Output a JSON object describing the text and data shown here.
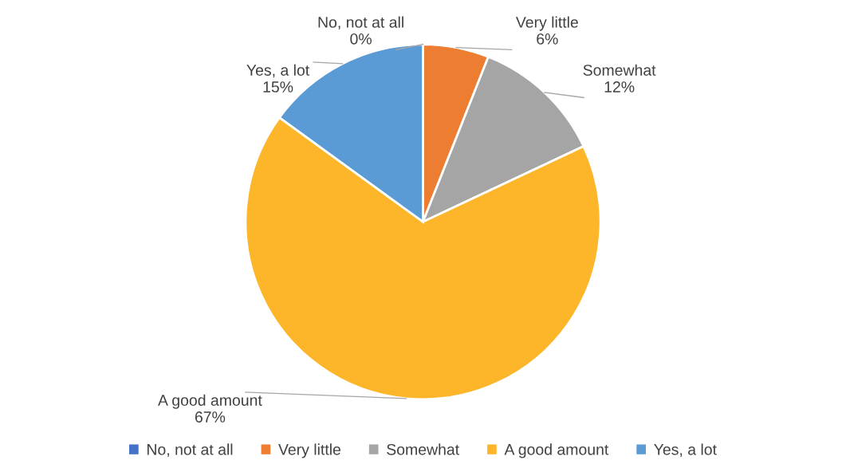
{
  "chart_data": {
    "type": "pie",
    "categories": [
      "No, not at all",
      "Very little",
      "Somewhat",
      "A good amount",
      "Yes, a lot"
    ],
    "values": [
      0,
      6,
      12,
      67,
      15
    ],
    "value_labels": [
      "0%",
      "6%",
      "12%",
      "67%",
      "15%"
    ],
    "colors": [
      "#4472c4",
      "#ed7d31",
      "#a5a5a5",
      "#fdb529",
      "#5b9bd5"
    ],
    "legend": "bottom"
  }
}
